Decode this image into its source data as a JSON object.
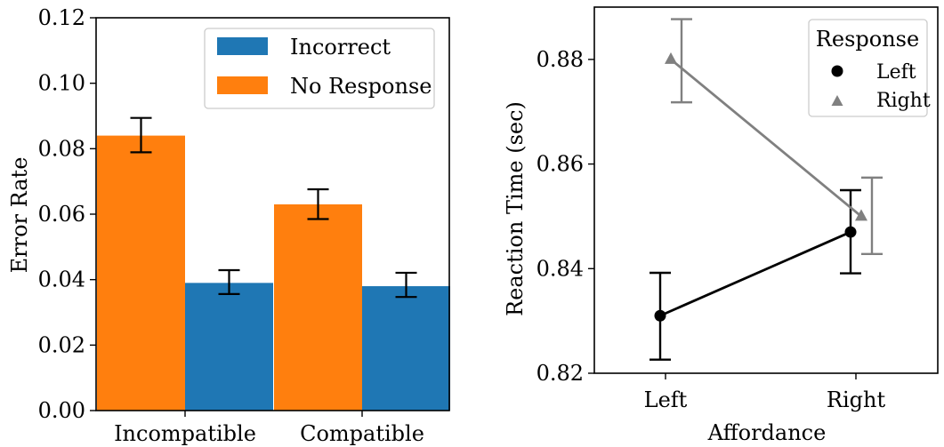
{
  "chart_data": [
    {
      "type": "bar",
      "categories": [
        "Incompatible",
        "Compatible"
      ],
      "series": [
        {
          "name": "Incorrect",
          "color": "#1f77b4",
          "values": [
            0.039,
            0.038
          ],
          "err_low": [
            0.0356,
            0.0347
          ],
          "err_high": [
            0.0429,
            0.0421
          ]
        },
        {
          "name": "No Response",
          "color": "#ff7f0e",
          "values": [
            0.084,
            0.063
          ],
          "err_low": [
            0.0789,
            0.0585
          ],
          "err_high": [
            0.0894,
            0.0676
          ]
        }
      ],
      "bar_order": [
        "No Response",
        "Incorrect"
      ],
      "xlabel": "",
      "ylabel": "Error Rate",
      "ylim": [
        0,
        0.12
      ],
      "yticks": [
        "0.00",
        "0.02",
        "0.04",
        "0.06",
        "0.08",
        "0.10",
        "0.12"
      ],
      "legend_placement": "top-right",
      "grid": false
    },
    {
      "type": "line",
      "categories": [
        "Left",
        "Right"
      ],
      "series": [
        {
          "name": "Left",
          "color": "#000000",
          "marker": "circle",
          "values": [
            0.831,
            0.847
          ],
          "err_low": [
            0.8226,
            0.8391
          ],
          "err_high": [
            0.8392,
            0.855
          ]
        },
        {
          "name": "Right",
          "color": "#808080",
          "marker": "triangle",
          "values": [
            0.88,
            0.85
          ],
          "err_low": [
            0.8718,
            0.8428
          ],
          "err_high": [
            0.8877,
            0.8574
          ]
        }
      ],
      "legend_title": "Response",
      "xlabel": "Affordance",
      "ylabel": "Reaction Time (sec)",
      "ylim": [
        0.82,
        0.89
      ],
      "yticks": [
        "0.82",
        "0.84",
        "0.86",
        "0.88"
      ],
      "legend_placement": "top-right",
      "grid": false
    }
  ]
}
